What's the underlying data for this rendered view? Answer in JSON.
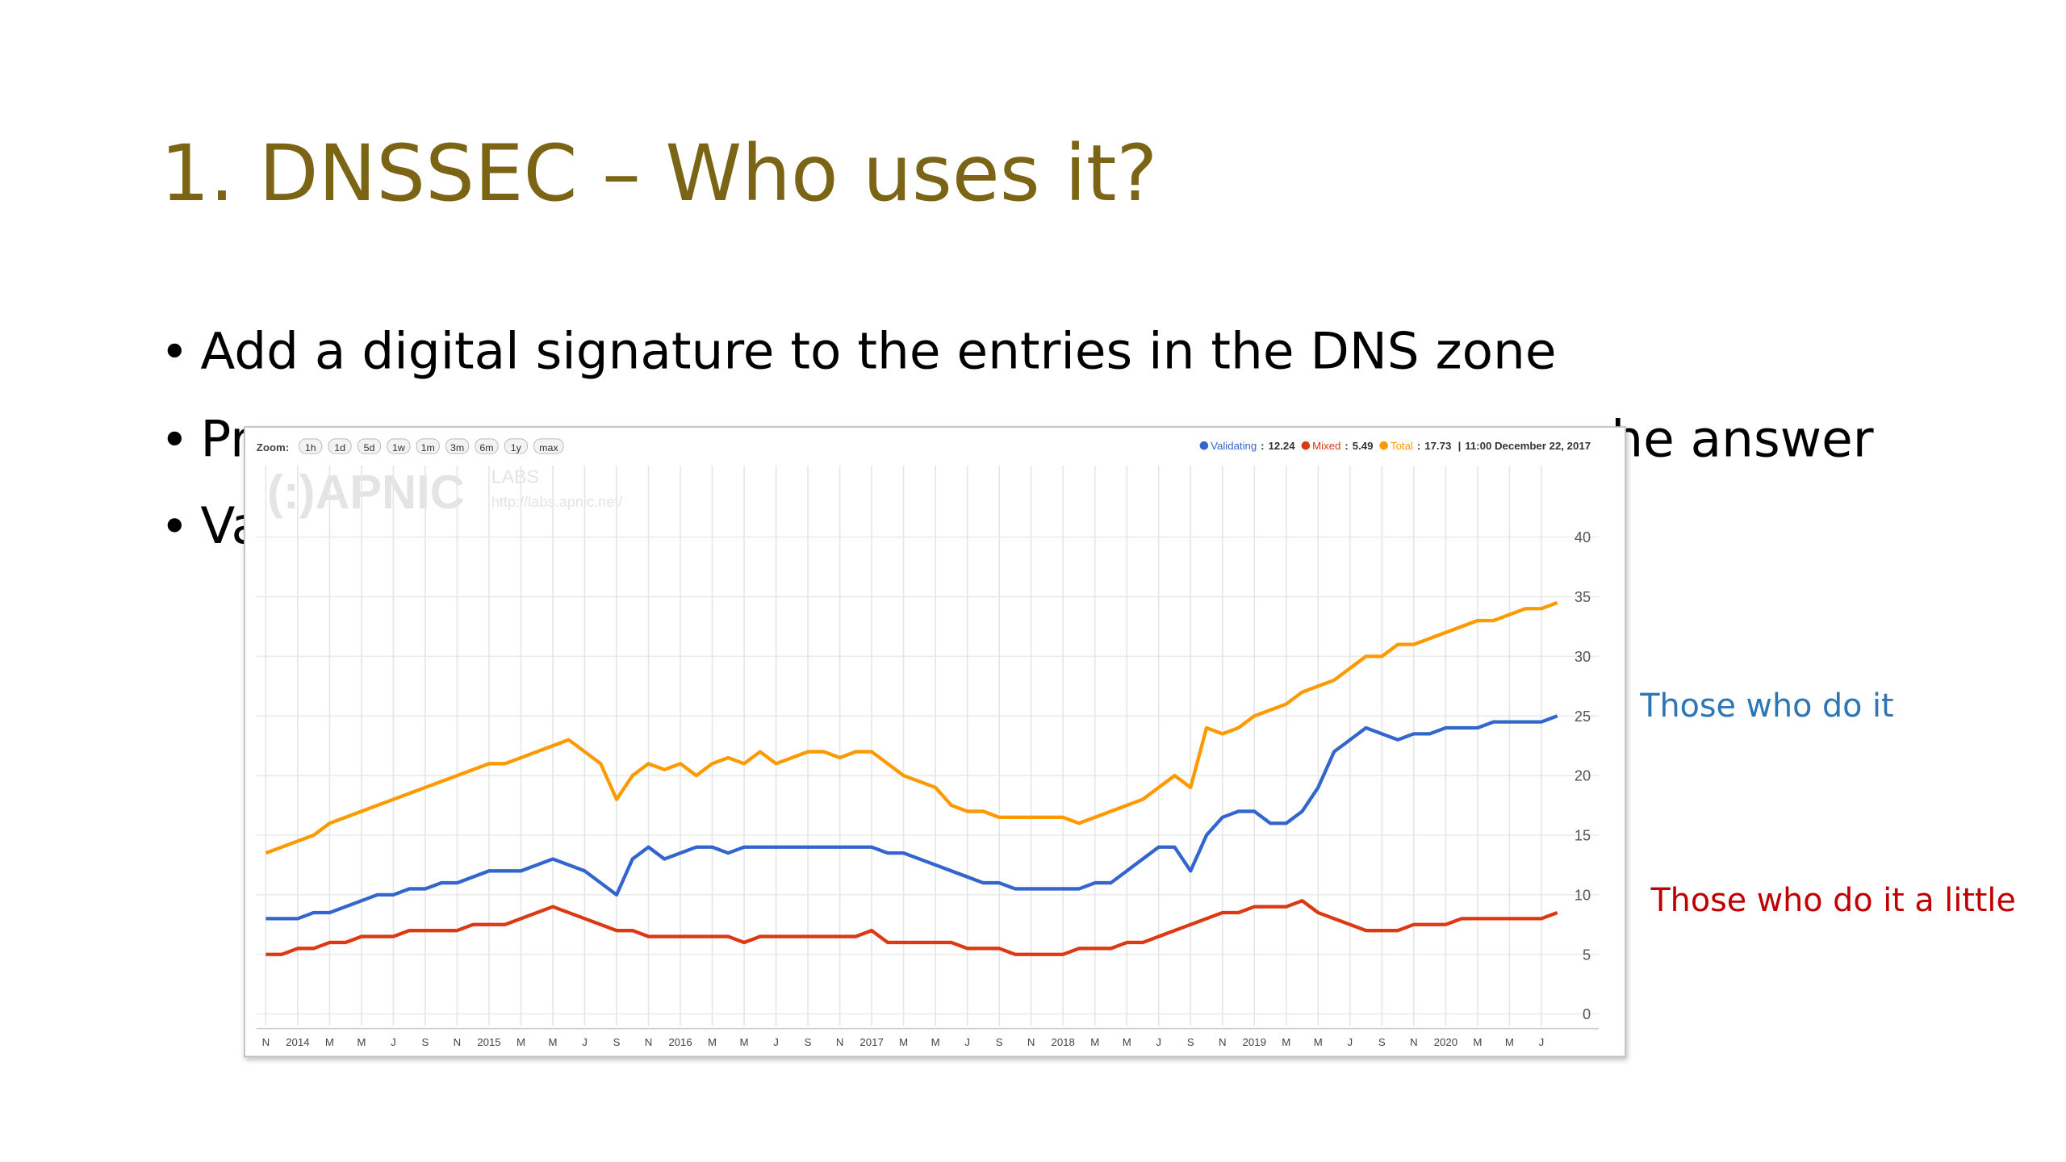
{
  "slide": {
    "title": "1. DNSSEC – Who uses it?",
    "bullet_symbol": "•",
    "bullets": [
      {
        "text": "Add a digital signature to the entries in the DNS zone"
      },
      {
        "left": "Pr",
        "right": "he answer"
      },
      {
        "text": "Va"
      }
    ]
  },
  "annotations": {
    "validating": "Those who do it",
    "mixed": "Those who do it a little"
  },
  "chart_data": {
    "type": "line",
    "zoom_label": "Zoom:",
    "zoom_options": [
      "1h",
      "1d",
      "5d",
      "1w",
      "1m",
      "3m",
      "6m",
      "1y",
      "max"
    ],
    "watermark": {
      "logo": "(:)APNIC",
      "sub": "LABS",
      "url": "http://labs.apnic.net/"
    },
    "readout_separator": ":",
    "readout_divider": "|",
    "readout_time": "11:00 December 22, 2017",
    "categories": [
      "N",
      null,
      "2014",
      null,
      "M",
      null,
      "M",
      null,
      "J",
      null,
      "S",
      null,
      "N",
      null,
      "2015",
      null,
      "M",
      null,
      "M",
      null,
      "J",
      null,
      "S",
      null,
      "N",
      null,
      "2016",
      null,
      "M",
      null,
      "M",
      null,
      "J",
      null,
      "S",
      null,
      "N",
      null,
      "2017",
      null,
      "M",
      null,
      "M",
      null,
      "J",
      null,
      "S",
      null,
      "N",
      null,
      "2018",
      null,
      "M",
      null,
      "M",
      null,
      "J",
      null,
      "S",
      null,
      "N",
      null,
      "2019",
      null,
      "M",
      null,
      "M",
      null,
      "J",
      null,
      "S",
      null,
      "N",
      null,
      "2020",
      null,
      "M",
      null,
      "M",
      null,
      "J",
      null
    ],
    "series": [
      {
        "name": "Validating",
        "color": "#3366cc",
        "readout": 12.24,
        "values": [
          8,
          8,
          8,
          8.5,
          8.5,
          9,
          9.5,
          10,
          10,
          10.5,
          10.5,
          11,
          11,
          11.5,
          12,
          12,
          12,
          12.5,
          13,
          12.5,
          12,
          11,
          10,
          13,
          14,
          13,
          13.5,
          14,
          14,
          13.5,
          14,
          14,
          14,
          14,
          14,
          14,
          14,
          14,
          14,
          13.5,
          13.5,
          13,
          12.5,
          12,
          11.5,
          11,
          11,
          10.5,
          10.5,
          10.5,
          10.5,
          10.5,
          11,
          11,
          12,
          13,
          14,
          14,
          12,
          15,
          16.5,
          17,
          17,
          16,
          16,
          17,
          19,
          22,
          23,
          24,
          23.5,
          23,
          23.5,
          23.5,
          24,
          24,
          24,
          24.5,
          24.5,
          24.5,
          24.5,
          25
        ]
      },
      {
        "name": "Mixed",
        "color": "#dc3912",
        "readout": 5.49,
        "values": [
          5,
          5,
          5.5,
          5.5,
          6,
          6,
          6.5,
          6.5,
          6.5,
          7,
          7,
          7,
          7,
          7.5,
          7.5,
          7.5,
          8,
          8.5,
          9,
          8.5,
          8,
          7.5,
          7,
          7,
          6.5,
          6.5,
          6.5,
          6.5,
          6.5,
          6.5,
          6,
          6.5,
          6.5,
          6.5,
          6.5,
          6.5,
          6.5,
          6.5,
          7,
          6,
          6,
          6,
          6,
          6,
          5.5,
          5.5,
          5.5,
          5,
          5,
          5,
          5,
          5.5,
          5.5,
          5.5,
          6,
          6,
          6.5,
          7,
          7.5,
          8,
          8.5,
          8.5,
          9,
          9,
          9,
          9.5,
          8.5,
          8,
          7.5,
          7,
          7,
          7,
          7.5,
          7.5,
          7.5,
          8,
          8,
          8,
          8,
          8,
          8,
          8.5
        ]
      },
      {
        "name": "Total",
        "color": "#ff9900",
        "readout": 17.73,
        "values": [
          13.5,
          14,
          14.5,
          15,
          16,
          16.5,
          17,
          17.5,
          18,
          18.5,
          19,
          19.5,
          20,
          20.5,
          21,
          21,
          21.5,
          22,
          22.5,
          23,
          22,
          21,
          18,
          20,
          21,
          20.5,
          21,
          20,
          21,
          21.5,
          21,
          22,
          21,
          21.5,
          22,
          22,
          21.5,
          22,
          22,
          21,
          20,
          19.5,
          19,
          17.5,
          17,
          17,
          16.5,
          16.5,
          16.5,
          16.5,
          16.5,
          16,
          16.5,
          17,
          17.5,
          18,
          19,
          20,
          19,
          24,
          23.5,
          24,
          25,
          25.5,
          26,
          27,
          27.5,
          28,
          29,
          30,
          30,
          31,
          31,
          31.5,
          32,
          32.5,
          33,
          33,
          33.5,
          34,
          34,
          34.5
        ]
      }
    ],
    "ylim": [
      -1,
      46
    ],
    "yticks": [
      0,
      5,
      10,
      15,
      20,
      25,
      30,
      35,
      40
    ],
    "y_axis_side": "right",
    "grid": true
  }
}
